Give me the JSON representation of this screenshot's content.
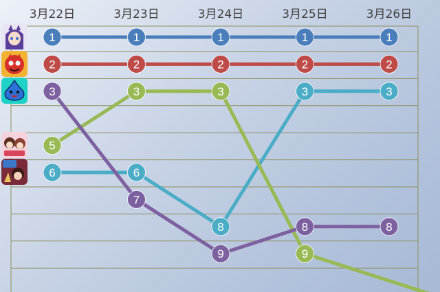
{
  "chart_data": {
    "type": "line",
    "title": "",
    "xlabel": "",
    "ylabel": "",
    "categories": [
      "3月22日",
      "3月23日",
      "3月24日",
      "3月25日",
      "3月26日"
    ],
    "y_axis": {
      "reversed": true,
      "min": 1,
      "max": 9,
      "grid": true
    },
    "series": [
      {
        "color": "#4a7ebb",
        "values": [
          1,
          1,
          1,
          1,
          1
        ],
        "icon": "app-icon-horse-girl"
      },
      {
        "color": "#be4b48",
        "values": [
          2,
          2,
          2,
          2,
          2
        ],
        "icon": "app-icon-red-monster"
      },
      {
        "color": "#4bacc6",
        "values": [
          6,
          6,
          8,
          3,
          3
        ],
        "icon": "app-icon-anniversary"
      },
      {
        "color": "#98b954",
        "values": [
          5,
          3,
          3,
          9,
          null
        ],
        "continues_below_to": 10,
        "icon": "app-icon-idol-girls"
      },
      {
        "color": "#7d60a0",
        "values": [
          3,
          7,
          9,
          8,
          8
        ],
        "icon": "app-icon-blue-slime"
      }
    ]
  }
}
